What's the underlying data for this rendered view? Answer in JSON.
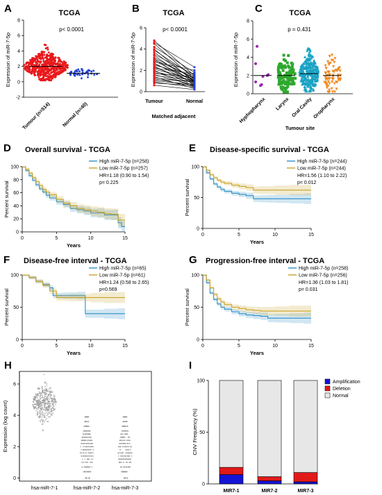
{
  "panels": [
    {
      "letter": "A",
      "title": "TCGA",
      "ylabel": "Expression of miR-7-5p",
      "pvalue": "p< 0.0001"
    },
    {
      "letter": "B",
      "title": "TCGA",
      "ylabel": "Expression of miR-7-5p",
      "pvalue": "p< 0.0001",
      "xlabel": "Matched adjacent"
    },
    {
      "letter": "C",
      "title": "TCGA",
      "ylabel": "Expression of miR-7-5p",
      "pvalue": "p = 0.431",
      "xlabel": "Tumour site"
    },
    {
      "letter": "D",
      "title": "Overall survival - TCGA",
      "ylabel": "Percent survival",
      "xlabel": "Years",
      "hr": "HR=1.18 (0.90 to 1.54)",
      "p": "p=  0.225"
    },
    {
      "letter": "E",
      "title": "Disease-specific survival - TCGA",
      "ylabel": "Percent survival",
      "xlabel": "Years",
      "hr": "HR=1.56  (1.10 to 2.22)",
      "p": "p=  0.012"
    },
    {
      "letter": "F",
      "title": "Disease-free interval - TCGA",
      "ylabel": "Percent survival",
      "xlabel": "Years",
      "hr": "HR=1.24  (0.58 to 2.65)",
      "p": "p=0.569"
    },
    {
      "letter": "G",
      "title": "Progression-free interval - TCGA",
      "ylabel": "Percent survival",
      "xlabel": "Years",
      "hr": "HR=1.36  (1.03 to 1.81)",
      "p": "p=  0.031"
    },
    {
      "letter": "H",
      "ylabel": "Expression (log count)"
    },
    {
      "letter": "I",
      "ylabel": "CNV Frequency (%)"
    }
  ],
  "colors": {
    "tumour": "#e8191c",
    "normal": "#1f3fd6",
    "hypopharynx": "#9b27b0",
    "larynx": "#2ea82e",
    "oral": "#1aa3c4",
    "oropharynx": "#f08a24",
    "km_high": "#2f8fc4",
    "km_low": "#c9a227",
    "amplification": "#1414d6",
    "deletion": "#e11a1a",
    "normal_cnv": "#e7e7e7",
    "grey_points": "#999999"
  },
  "chart_data": [
    {
      "panel": "A",
      "type": "scatter",
      "categories": [
        "Tumour (n=514)",
        "Normal (n=40)"
      ],
      "ylim": [
        -2,
        8
      ],
      "yticks": [
        -2,
        0,
        2,
        4,
        6,
        8
      ],
      "series": [
        {
          "name": "Tumour (n=514)",
          "n": 514,
          "median": 2.0,
          "range": [
            0.2,
            4.8
          ]
        },
        {
          "name": "Normal (n=40)",
          "n": 40,
          "median": 1.1,
          "range": [
            0.3,
            2.0
          ]
        }
      ]
    },
    {
      "panel": "B",
      "type": "line",
      "categories": [
        "Tumour",
        "Normal"
      ],
      "ylim": [
        0,
        6
      ],
      "yticks": [
        0,
        2,
        4,
        6
      ],
      "pairs": [
        [
          4.8,
          1.5
        ],
        [
          4.6,
          2.3
        ],
        [
          4.5,
          1.2
        ],
        [
          4.2,
          1.8
        ],
        [
          4.0,
          0.9
        ],
        [
          3.9,
          1.4
        ],
        [
          3.7,
          1.0
        ],
        [
          3.5,
          1.6
        ],
        [
          3.4,
          0.8
        ],
        [
          3.2,
          1.2
        ],
        [
          3.1,
          0.6
        ],
        [
          3.0,
          1.3
        ],
        [
          2.9,
          1.0
        ],
        [
          2.8,
          2.0
        ],
        [
          2.7,
          0.7
        ],
        [
          2.6,
          1.1
        ],
        [
          2.5,
          1.5
        ],
        [
          2.4,
          0.5
        ],
        [
          2.3,
          0.9
        ],
        [
          2.2,
          1.7
        ],
        [
          2.1,
          1.2
        ],
        [
          2.0,
          0.4
        ],
        [
          1.9,
          1.0
        ],
        [
          1.8,
          0.8
        ],
        [
          1.7,
          1.4
        ],
        [
          1.6,
          0.6
        ],
        [
          1.5,
          1.1
        ],
        [
          1.4,
          0.3
        ],
        [
          1.3,
          0.9
        ],
        [
          1.2,
          0.5
        ],
        [
          1.1,
          1.0
        ],
        [
          1.0,
          0.7
        ],
        [
          0.9,
          0.4
        ],
        [
          0.8,
          0.6
        ],
        [
          0.6,
          0.2
        ]
      ]
    },
    {
      "panel": "C",
      "type": "scatter",
      "categories": [
        "Hyphopharynx",
        "Larynx",
        "Oral Cavity",
        "Oropharynx"
      ],
      "ylim": [
        0,
        8
      ],
      "yticks": [
        0,
        2,
        4,
        6,
        8
      ],
      "series": [
        {
          "name": "Hyphopharynx",
          "values": [
            5.2,
            3.3,
            2.1,
            2.0,
            1.9,
            1.3,
            1.0,
            0.9
          ]
        },
        {
          "name": "Larynx",
          "n": 115,
          "median": 2.0,
          "range": [
            0.2,
            5.2
          ]
        },
        {
          "name": "Oral Cavity",
          "n": 310,
          "median": 2.2,
          "range": [
            0.3,
            5.8
          ]
        },
        {
          "name": "Oropharynx",
          "n": 80,
          "median": 2.0,
          "range": [
            0.2,
            6.2
          ]
        }
      ]
    },
    {
      "panel": "D",
      "type": "line",
      "xlim": [
        0,
        15
      ],
      "xticks": [
        0,
        5,
        10,
        15
      ],
      "ylim": [
        0,
        100
      ],
      "yticks": [
        0,
        20,
        40,
        60,
        80,
        100
      ],
      "series": [
        {
          "name": "High miR-7-5p (n=258)",
          "x": [
            0,
            0.5,
            1,
            1.5,
            2,
            2.5,
            3,
            3.5,
            4,
            5,
            6,
            7,
            8,
            9,
            10,
            11,
            12,
            13,
            14,
            14.5,
            15
          ],
          "y": [
            100,
            94,
            86,
            79,
            72,
            66,
            61,
            56,
            52,
            46,
            42,
            36,
            34,
            32,
            29,
            29,
            26,
            26,
            14,
            8,
            8
          ]
        },
        {
          "name": "Low miR-7-5p (n=257)",
          "x": [
            0,
            0.5,
            1,
            1.5,
            2,
            2.5,
            3,
            3.5,
            4,
            5,
            6,
            7,
            8,
            9,
            10,
            11,
            12,
            13,
            14,
            15
          ],
          "y": [
            100,
            96,
            90,
            83,
            77,
            71,
            65,
            61,
            57,
            50,
            44,
            40,
            36,
            34,
            32,
            30,
            28,
            27,
            18,
            18
          ]
        }
      ]
    },
    {
      "panel": "E",
      "type": "line",
      "xlim": [
        0,
        15
      ],
      "xticks": [
        0,
        5,
        10,
        15
      ],
      "ylim": [
        0,
        100
      ],
      "yticks": [
        0,
        50,
        100
      ],
      "series": [
        {
          "name": "High miR-7-5p (n=244)",
          "x": [
            0,
            0.5,
            1,
            1.5,
            2,
            2.5,
            3,
            4,
            5,
            6,
            7,
            8,
            9,
            10,
            12,
            14,
            15
          ],
          "y": [
            100,
            90,
            80,
            72,
            67,
            63,
            60,
            57,
            55,
            53,
            48,
            48,
            48,
            48,
            48,
            48,
            48
          ]
        },
        {
          "name": "Low miR-7-5p (n=244)",
          "x": [
            0,
            0.5,
            1,
            1.5,
            2,
            2.5,
            3,
            4,
            5,
            6,
            7,
            8,
            10,
            12,
            15
          ],
          "y": [
            100,
            94,
            87,
            82,
            78,
            75,
            73,
            70,
            68,
            66,
            62,
            62,
            62,
            62,
            62
          ]
        }
      ]
    },
    {
      "panel": "F",
      "type": "line",
      "xlim": [
        0,
        15
      ],
      "xticks": [
        0,
        5,
        10,
        15
      ],
      "ylim": [
        0,
        100
      ],
      "yticks": [
        0,
        50,
        100
      ],
      "series": [
        {
          "name": "High miR-7-5p (n=65)",
          "x": [
            0,
            1,
            2,
            3,
            4,
            4.5,
            5,
            6,
            8,
            9,
            9.2,
            12,
            14,
            15
          ],
          "y": [
            100,
            96,
            90,
            85,
            80,
            68,
            68,
            68,
            68,
            68,
            40,
            40,
            40,
            40
          ]
        },
        {
          "name": "Low miR-7-5p (n=61)",
          "x": [
            0,
            1,
            2,
            3,
            4,
            5,
            7,
            10,
            12,
            15
          ],
          "y": [
            100,
            96,
            90,
            84,
            75,
            65,
            65,
            65,
            65,
            65
          ]
        }
      ]
    },
    {
      "panel": "G",
      "type": "line",
      "xlim": [
        0,
        15
      ],
      "xticks": [
        0,
        5,
        10,
        15
      ],
      "ylim": [
        0,
        100
      ],
      "yticks": [
        0,
        50,
        100
      ],
      "series": [
        {
          "name": "High miR-7-5p (n=258)",
          "x": [
            0,
            0.5,
            1,
            1.5,
            2,
            2.5,
            3,
            4,
            5,
            6,
            7,
            8,
            9,
            10,
            12,
            14,
            15
          ],
          "y": [
            100,
            88,
            72,
            62,
            55,
            50,
            47,
            43,
            40,
            38,
            37,
            36,
            33,
            33,
            33,
            33,
            33
          ]
        },
        {
          "name": "Low miR-7-5p (n=256)",
          "x": [
            0,
            0.5,
            1,
            1.5,
            2,
            2.5,
            3,
            4,
            5,
            6,
            7,
            8,
            10,
            12,
            15
          ],
          "y": [
            100,
            92,
            80,
            70,
            63,
            58,
            54,
            50,
            48,
            46,
            45,
            44,
            44,
            44,
            44
          ]
        }
      ]
    },
    {
      "panel": "H",
      "type": "scatter",
      "categories": [
        "hsa-miR-7-1",
        "hsa-miR-7-2",
        "hsa-miR-7-3"
      ],
      "ylim": [
        -0.2,
        6.8
      ],
      "yticks": [
        0,
        2,
        4,
        6
      ],
      "series": [
        {
          "name": "hsa-miR-7-1",
          "center": 4.8,
          "range": [
            2.9,
            6.6
          ]
        },
        {
          "name": "hsa-miR-7-2",
          "center": 1.5,
          "range": [
            0,
            4.0
          ]
        },
        {
          "name": "hsa-miR-7-3",
          "center": 1.5,
          "range": [
            0,
            3.9
          ]
        }
      ]
    },
    {
      "panel": "I",
      "type": "bar",
      "stacked": true,
      "categories": [
        "MIR7-1",
        "MIR7-2",
        "MIR7-3"
      ],
      "ylim": [
        0,
        100
      ],
      "yticks": [
        0,
        50,
        100
      ],
      "series": [
        {
          "name": "Amplification",
          "values": [
            9,
            3,
            2
          ]
        },
        {
          "name": "Deletion",
          "values": [
            7,
            4,
            9
          ]
        },
        {
          "name": "Normal",
          "values": [
            84,
            93,
            89
          ]
        }
      ]
    }
  ]
}
